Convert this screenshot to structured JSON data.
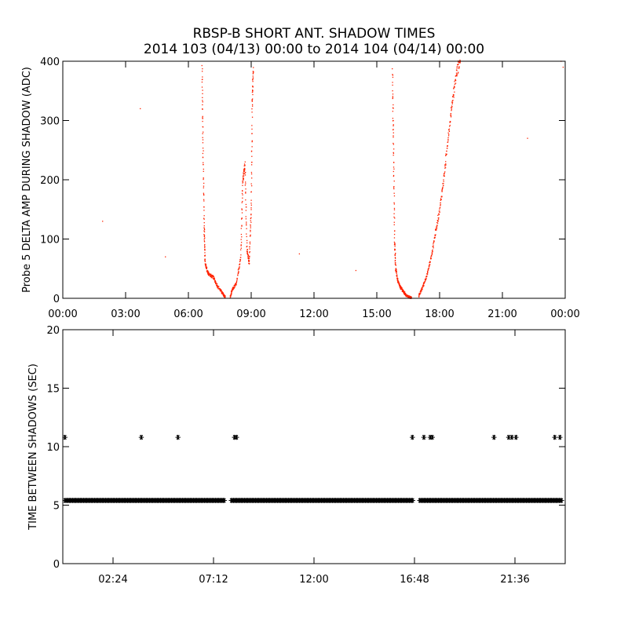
{
  "header": {
    "title": "RBSP-B SHORT ANT. SHADOW TIMES",
    "subtitle": "2014 103 (04/13) 00:00 to 2014 104 (04/14) 00:00"
  },
  "colors": {
    "top_points": "#ff2200",
    "bottom_points": "#000000",
    "axes": "#000000"
  },
  "chart_data": [
    {
      "type": "scatter",
      "ylabel": "Probe 5 DELTA AMP DURING SHADOW (ADC)",
      "xlim": [
        0,
        24
      ],
      "ylim": [
        0,
        400
      ],
      "x_unit": "hours",
      "x_ticks": [
        0,
        3,
        6,
        9,
        12,
        15,
        18,
        21,
        24
      ],
      "x_tick_labels": [
        "00:00",
        "03:00",
        "06:00",
        "09:00",
        "12:00",
        "15:00",
        "18:00",
        "21:00",
        "00:00"
      ],
      "y_ticks": [
        0,
        100,
        200,
        300,
        400
      ],
      "y_tick_labels": [
        "0",
        "100",
        "200",
        "300",
        "400"
      ],
      "marker": "dot",
      "color": "#ff2200",
      "isolated_points": [
        [
          1.9,
          130
        ],
        [
          3.7,
          320
        ],
        [
          4.9,
          70
        ],
        [
          11.3,
          75
        ],
        [
          14.0,
          47
        ],
        [
          22.2,
          270
        ],
        [
          23.8,
          400
        ],
        [
          23.9,
          390
        ]
      ],
      "segments": [
        {
          "x": [
            6.65,
            6.7,
            6.75,
            6.8,
            6.9,
            7.0,
            7.2,
            7.4,
            7.6,
            7.7,
            7.75
          ],
          "y": [
            390,
            250,
            120,
            60,
            45,
            40,
            35,
            20,
            10,
            5,
            2
          ]
        },
        {
          "x": [
            8.0,
            8.1,
            8.3,
            8.5,
            8.6,
            8.7,
            8.8,
            8.9,
            9.0,
            9.05,
            9.1
          ],
          "y": [
            2,
            15,
            25,
            70,
            200,
            225,
            80,
            60,
            150,
            330,
            390
          ]
        },
        {
          "x": [
            15.75,
            15.8,
            15.85,
            15.9,
            16.0,
            16.1,
            16.2,
            16.3,
            16.4,
            16.55,
            16.65
          ],
          "y": [
            380,
            250,
            100,
            50,
            30,
            20,
            15,
            10,
            5,
            2,
            1
          ]
        },
        {
          "x": [
            17.0,
            17.2,
            17.4,
            17.6,
            17.8,
            18.0,
            18.2,
            18.4,
            18.6,
            18.8,
            19.0
          ],
          "y": [
            3,
            20,
            40,
            70,
            110,
            150,
            200,
            270,
            330,
            380,
            405
          ]
        }
      ]
    },
    {
      "type": "scatter",
      "ylabel": "TIME BETWEEN SHADOWS (SEC)",
      "xlim": [
        0,
        24
      ],
      "ylim": [
        0,
        20
      ],
      "x_unit": "hours",
      "x_ticks": [
        2.4,
        7.2,
        12.0,
        16.8,
        21.6
      ],
      "x_tick_labels": [
        "02:24",
        "07:12",
        "12:00",
        "16:48",
        "21:36"
      ],
      "y_ticks": [
        0,
        5,
        10,
        15,
        20
      ],
      "y_tick_labels": [
        "0",
        "5",
        "10",
        "15",
        "20"
      ],
      "marker": "asterisk",
      "color": "#000000",
      "band_value": 5.4,
      "band_ranges": [
        [
          0.1,
          7.75
        ],
        [
          8.05,
          16.75
        ],
        [
          17.05,
          23.85
        ]
      ],
      "outlier_points": [
        [
          0.1,
          10.8
        ],
        [
          3.75,
          10.8
        ],
        [
          5.5,
          10.8
        ],
        [
          8.2,
          10.8
        ],
        [
          8.3,
          10.8
        ],
        [
          16.7,
          10.8
        ],
        [
          17.25,
          10.8
        ],
        [
          17.55,
          10.8
        ],
        [
          17.65,
          10.8
        ],
        [
          20.6,
          10.8
        ],
        [
          21.3,
          10.8
        ],
        [
          21.45,
          10.8
        ],
        [
          21.65,
          10.8
        ],
        [
          23.5,
          10.8
        ],
        [
          23.75,
          10.8
        ]
      ]
    }
  ]
}
